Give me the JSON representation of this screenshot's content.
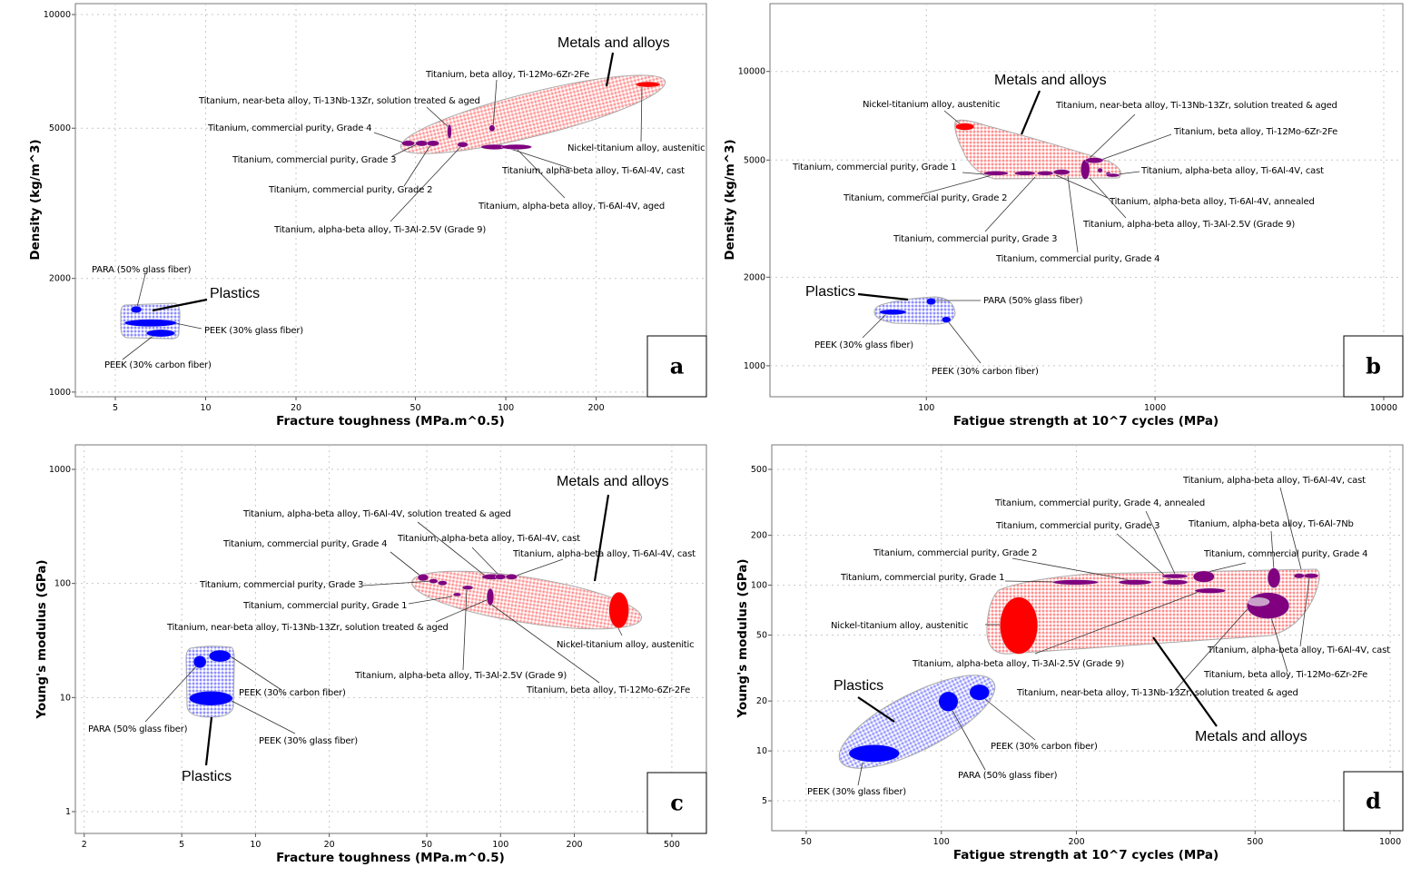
{
  "colors": {
    "metal": "#800080",
    "niti": "#ff0000",
    "plastic": "#0000ff",
    "metal_envelope": "#ffb3b3",
    "plastic_envelope": "#b3b3ff"
  },
  "chart_data": [
    {
      "type": "scatter",
      "panel": "a",
      "xlabel": "Fracture toughness (MPa.m^0.5)",
      "ylabel": "Density (kg/m^3)",
      "xscale": "log",
      "yscale": "log",
      "xlim": [
        3.68,
        466
      ],
      "ylim": [
        972,
        10690
      ],
      "xticks": [
        5,
        10,
        20,
        50,
        100,
        200
      ],
      "yticks": [
        1000,
        2000,
        5000,
        10000
      ],
      "grid": true,
      "families": [
        {
          "name": "Metals and alloys"
        },
        {
          "name": "Plastics"
        }
      ],
      "materials": [
        {
          "name": "Nickel-titanium alloy, austenitic",
          "family": 0,
          "color": "#ff0000",
          "x": [
            271,
            327
          ],
          "y": [
            6420,
            6640
          ]
        },
        {
          "name": "Titanium, beta alloy, Ti-12Mo-6Zr-2Fe",
          "family": 0,
          "color": "#800080",
          "x": [
            88,
            92
          ],
          "y": [
            4900,
            5100
          ]
        },
        {
          "name": "Titanium, near-beta alloy, Ti-13Nb-13Zr, solution treated & aged",
          "family": 0,
          "color": "#800080",
          "x": [
            63.8,
            66
          ],
          "y": [
            4690,
            5120
          ]
        },
        {
          "name": "Titanium, commercial purity, Grade 4",
          "family": 0,
          "color": "#800080",
          "x": [
            45,
            49.7
          ],
          "y": [
            4480,
            4640
          ]
        },
        {
          "name": "Titanium, commercial purity, Grade 3",
          "family": 0,
          "color": "#800080",
          "x": [
            50,
            55
          ],
          "y": [
            4480,
            4640
          ]
        },
        {
          "name": "Titanium, commercial purity, Grade 2",
          "family": 0,
          "color": "#800080",
          "x": [
            54.5,
            60
          ],
          "y": [
            4480,
            4640
          ]
        },
        {
          "name": "Titanium, alpha-beta alloy, Ti-3Al-2.5V (Grade 9)",
          "family": 0,
          "color": "#800080",
          "x": [
            68.9,
            74.8
          ],
          "y": [
            4450,
            4600
          ]
        },
        {
          "name": "Titanium, alpha-beta alloy, Ti-6Al-4V, cast",
          "family": 0,
          "color": "#800080",
          "x": [
            82.6,
            101.6
          ],
          "y": [
            4390,
            4530
          ]
        },
        {
          "name": "Titanium, alpha-beta alloy, Ti-6Al-4V, aged",
          "family": 0,
          "color": "#800080",
          "x": [
            96.5,
            122
          ],
          "y": [
            4390,
            4530
          ]
        },
        {
          "name": "PARA (50% glass fiber)",
          "family": 1,
          "color": "#0000ff",
          "x": [
            5.63,
            6.12
          ],
          "y": [
            1620,
            1690
          ]
        },
        {
          "name": "PEEK (30% glass fiber)",
          "family": 1,
          "color": "#0000ff",
          "x": [
            5.36,
            8.02
          ],
          "y": [
            1490,
            1560
          ]
        },
        {
          "name": "PEEK (30% carbon fiber)",
          "family": 1,
          "color": "#0000ff",
          "x": [
            6.34,
            7.91
          ],
          "y": [
            1400,
            1465
          ]
        }
      ]
    },
    {
      "type": "scatter",
      "panel": "b",
      "xlabel": "Fatigue strength at 10^7 cycles (MPa)",
      "ylabel": "Density (kg/m^3)",
      "xscale": "log",
      "yscale": "log",
      "xlim": [
        20.7,
        12120
      ],
      "ylim": [
        785,
        17000
      ],
      "xticks": [
        100,
        1000,
        10000
      ],
      "yticks": [
        1000,
        2000,
        5000,
        10000
      ],
      "grid": true,
      "families": [
        {
          "name": "Metals and alloys"
        },
        {
          "name": "Plastics"
        }
      ],
      "materials": [
        {
          "name": "Nickel-titanium alloy, austenitic",
          "family": 0,
          "color": "#ff0000",
          "x": [
            134,
            162
          ],
          "y": [
            6310,
            6680
          ]
        },
        {
          "name": "Titanium, near-beta alloy, Ti-13Nb-13Zr, solution treated & aged",
          "family": 0,
          "color": "#800080",
          "x": [
            473,
            518
          ],
          "y": [
            4300,
            5020
          ]
        },
        {
          "name": "Titanium, beta alloy, Ti-12Mo-6Zr-2Fe",
          "family": 0,
          "color": "#800080",
          "x": [
            495,
            594
          ],
          "y": [
            4880,
            5100
          ]
        },
        {
          "name": "Titanium, commercial purity, Grade 1",
          "family": 0,
          "color": "#800080",
          "x": [
            178,
            228
          ],
          "y": [
            4430,
            4590
          ]
        },
        {
          "name": "Titanium, alpha-beta alloy, Ti-6Al-4V, cast",
          "family": 0,
          "color": "#800080",
          "x": [
            560,
            590
          ],
          "y": [
            4530,
            4700
          ]
        },
        {
          "name": "Titanium, commercial purity, Grade 2",
          "family": 0,
          "color": "#800080",
          "x": [
            243,
            299
          ],
          "y": [
            4430,
            4590
          ]
        },
        {
          "name": "Titanium, alpha-beta alloy, Ti-6Al-4V, annealed",
          "family": 0,
          "color": "#800080",
          "x": [
            610,
            640
          ],
          "y": [
            4420,
            4560
          ]
        },
        {
          "name": "Titanium, commercial purity, Grade 3",
          "family": 0,
          "color": "#800080",
          "x": [
            305,
            359
          ],
          "y": [
            4430,
            4590
          ]
        },
        {
          "name": "Titanium, alpha-beta alloy, Ti-3Al-2.5V (Grade 9)",
          "family": 0,
          "color": "#800080",
          "x": [
            610,
            700
          ],
          "y": [
            4380,
            4500
          ]
        },
        {
          "name": "Titanium, commercial purity, Grade 4",
          "family": 0,
          "color": "#800080",
          "x": [
            359,
            424
          ],
          "y": [
            4450,
            4650
          ]
        },
        {
          "name": "PARA (50% glass fiber)",
          "family": 1,
          "color": "#0000ff",
          "x": [
            100,
            110
          ],
          "y": [
            1610,
            1700
          ]
        },
        {
          "name": "PEEK (30% glass fiber)",
          "family": 1,
          "color": "#0000ff",
          "x": [
            62.2,
            81.8
          ],
          "y": [
            1490,
            1555
          ]
        },
        {
          "name": "PEEK (30% carbon fiber)",
          "family": 1,
          "color": "#0000ff",
          "x": [
            116.8,
            128
          ],
          "y": [
            1400,
            1470
          ]
        }
      ]
    },
    {
      "type": "scatter",
      "panel": "c",
      "xlabel": "Fracture toughness (MPa.m^0.5)",
      "ylabel": "Young's modulus (GPa)",
      "xscale": "log",
      "yscale": "log",
      "xlim": [
        1.84,
        692
      ],
      "ylim": [
        0.644,
        1640
      ],
      "xticks": [
        2,
        5,
        10,
        20,
        50,
        100,
        200,
        500
      ],
      "yticks": [
        1,
        10,
        100,
        1000
      ],
      "grid": true,
      "families": [
        {
          "name": "Metals and alloys"
        },
        {
          "name": "Plastics"
        }
      ],
      "materials": [
        {
          "name": "Nickel-titanium alloy, austenitic",
          "family": 0,
          "color": "#ff0000",
          "x": [
            277,
            334
          ],
          "y": [
            40.5,
            84
          ]
        },
        {
          "name": "Titanium, alpha-beta alloy, Ti-6Al-4V, solution treated & aged",
          "family": 0,
          "color": "#800080",
          "x": [
            84,
            101.6
          ],
          "y": [
            108,
            121
          ]
        },
        {
          "name": "Titanium, alpha-beta alloy, Ti-6Al-4V, cast",
          "family": 0,
          "color": "#800080",
          "x": [
            95,
            105
          ],
          "y": [
            108,
            121
          ]
        },
        {
          "name": "Titanium, commercial purity, Grade 4",
          "family": 0,
          "color": "#800080",
          "x": [
            45.9,
            50.8
          ],
          "y": [
            105,
            121
          ]
        },
        {
          "name": "Titanium, alpha-beta alloy, Ti-6Al-4V, cast",
          "family": 0,
          "color": "#800080",
          "x": [
            105,
            117
          ],
          "y": [
            108,
            121
          ]
        },
        {
          "name": "Titanium, commercial purity, Grade 3",
          "family": 0,
          "color": "#800080",
          "x": [
            51,
            55.5
          ],
          "y": [
            100,
            110
          ]
        },
        {
          "name": "Titanium, commercial purity, Grade 1",
          "family": 0,
          "color": "#800080",
          "x": [
            55.5,
            60.5
          ],
          "y": [
            96,
            106
          ]
        },
        {
          "name": "Titanium, near-beta alloy, Ti-13Nb-13Zr, solution treated & aged",
          "family": 0,
          "color": "#800080",
          "x": [
            87.8,
            93.9
          ],
          "y": [
            64,
            90.6
          ]
        },
        {
          "name": "Titanium, alpha-beta alloy, Ti-3Al-2.5V (Grade 9)",
          "family": 0,
          "color": "#800080",
          "x": [
            69.8,
            77.3
          ],
          "y": [
            88,
            96
          ]
        },
        {
          "name": "Titanium, beta alloy, Ti-12Mo-6Zr-2Fe",
          "family": 0,
          "color": "#800080",
          "x": [
            64.1,
            69
          ],
          "y": [
            77,
            83
          ]
        },
        {
          "name": "PEEK (30% carbon fiber)",
          "family": 1,
          "color": "#0000ff",
          "x": [
            6.46,
            7.93
          ],
          "y": [
            20.5,
            26.1
          ]
        },
        {
          "name": "PARA (50% glass fiber)",
          "family": 1,
          "color": "#0000ff",
          "x": [
            5.58,
            6.3
          ],
          "y": [
            18.1,
            23.3
          ]
        },
        {
          "name": "PEEK (30% glass fiber)",
          "family": 1,
          "color": "#0000ff",
          "x": [
            5.36,
            8.07
          ],
          "y": [
            8.5,
            11.4
          ]
        }
      ]
    },
    {
      "type": "scatter",
      "panel": "d",
      "xlabel": "Fatigue strength at 10^7 cycles (MPa)",
      "ylabel": "Young's modulus (GPa)",
      "xscale": "log",
      "yscale": "log",
      "xlim": [
        41.9,
        1067
      ],
      "ylim": [
        3.3,
        703
      ],
      "xticks": [
        50,
        100,
        200,
        500,
        1000
      ],
      "yticks": [
        5,
        10,
        20,
        50,
        100,
        200,
        500
      ],
      "grid": true,
      "families": [
        {
          "name": "Metals and alloys"
        },
        {
          "name": "Plastics"
        }
      ],
      "materials": [
        {
          "name": "Titanium, alpha-beta alloy, Ti-6Al-4V, cast",
          "family": 0,
          "color": "#800080",
          "x": [
            610,
            644
          ],
          "y": [
            110,
            118
          ]
        },
        {
          "name": "Titanium, commercial purity, Grade 4, annealed",
          "family": 0,
          "color": "#800080",
          "x": [
            310,
            354
          ],
          "y": [
            110,
            117
          ]
        },
        {
          "name": "Titanium, commercial purity, Grade 3",
          "family": 0,
          "color": "#800080",
          "x": [
            310,
            354
          ],
          "y": [
            100.5,
            108
          ]
        },
        {
          "name": "Titanium, alpha-beta alloy, Ti-6Al-7Nb",
          "family": 0,
          "color": "#800080",
          "x": [
            533,
            569
          ],
          "y": [
            96.3,
            127
          ]
        },
        {
          "name": "Titanium, commercial purity, Grade 2",
          "family": 0,
          "color": "#800080",
          "x": [
            248,
            294
          ],
          "y": [
            100.5,
            108
          ]
        },
        {
          "name": "Titanium, commercial purity, Grade 4",
          "family": 0,
          "color": "#800080",
          "x": [
            364,
            406
          ],
          "y": [
            104,
            122
          ]
        },
        {
          "name": "Titanium, commercial purity, Grade 1",
          "family": 0,
          "color": "#800080",
          "x": [
            177,
            224
          ],
          "y": [
            100.5,
            108
          ]
        },
        {
          "name": "Nickel-titanium alloy, austenitic",
          "family": 0,
          "color": "#ff0000",
          "x": [
            135,
            164
          ],
          "y": [
            38.4,
            84.9
          ]
        },
        {
          "name": "Titanium, alpha-beta alloy, Ti-3Al-2.5V (Grade 9)",
          "family": 0,
          "color": "#800080",
          "x": [
            367,
            430
          ],
          "y": [
            89.3,
            96
          ]
        },
        {
          "name": "Titanium, alpha-beta alloy, Ti-6Al-4V, cast",
          "family": 0,
          "color": "#800080",
          "x": [
            642,
            692
          ],
          "y": [
            110,
            118
          ]
        },
        {
          "name": "Titanium, beta alloy, Ti-12Mo-6Zr-2Fe",
          "family": 0,
          "color": "#800080",
          "x": [
            479,
            596
          ],
          "y": [
            62.7,
            90.4
          ]
        },
        {
          "name": "Titanium, near-beta alloy, Ti-13Nb-13Zr, solution treated & aged",
          "family": 0,
          "color": "#c9a0c9",
          "x": [
            481,
            538
          ],
          "y": [
            75,
            84
          ]
        },
        {
          "name": "PEEK (30% carbon fiber)",
          "family": 1,
          "color": "#0000ff",
          "x": [
            115.5,
            128
          ],
          "y": [
            20.2,
            25.2
          ]
        },
        {
          "name": "PARA (50% glass fiber)",
          "family": 1,
          "color": "#0000ff",
          "x": [
            98.6,
            109
          ],
          "y": [
            17.3,
            22.8
          ]
        },
        {
          "name": "PEEK (30% glass fiber)",
          "family": 1,
          "color": "#0000ff",
          "x": [
            62.2,
            80.7
          ],
          "y": [
            8.55,
            10.9
          ]
        }
      ]
    }
  ]
}
